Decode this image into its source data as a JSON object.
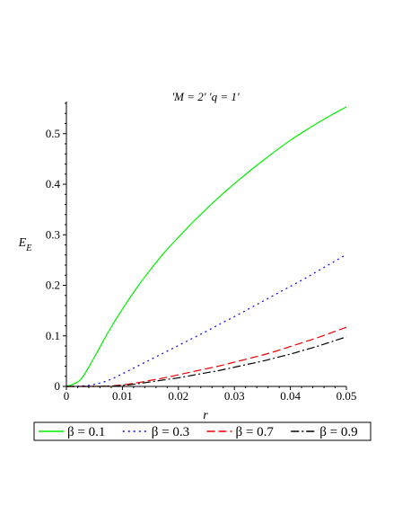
{
  "chart_data": {
    "type": "line",
    "title": "'M = 2' 'q = 1'",
    "xlabel": "r",
    "ylabel": "E",
    "ylabel_subscript": "E",
    "xlim": [
      0,
      0.05
    ],
    "ylim": [
      0,
      0.56
    ],
    "xticks": [
      0,
      0.01,
      0.02,
      0.03,
      0.04,
      0.05
    ],
    "xtick_labels": [
      "0",
      "0.01",
      "0.02",
      "0.03",
      "0.04",
      "0.05"
    ],
    "yticks": [
      0,
      0.1,
      0.2,
      0.3,
      0.4,
      0.5
    ],
    "ytick_labels": [
      "0",
      "0.1",
      "0.2",
      "0.3",
      "0.4",
      "0.5"
    ],
    "grid": false,
    "legend_position": "bottom",
    "x": [
      0,
      0.0025,
      0.005,
      0.0075,
      0.01,
      0.0125,
      0.015,
      0.0175,
      0.02,
      0.0225,
      0.025,
      0.0275,
      0.03,
      0.0325,
      0.035,
      0.0375,
      0.04,
      0.0425,
      0.045,
      0.0475,
      0.05
    ],
    "series": [
      {
        "name": "β = 0.1",
        "color": "#00ee00",
        "dash": "solid",
        "values": [
          0,
          0.013,
          0.058,
          0.108,
          0.153,
          0.194,
          0.231,
          0.265,
          0.295,
          0.324,
          0.351,
          0.377,
          0.401,
          0.424,
          0.446,
          0.467,
          0.487,
          0.505,
          0.522,
          0.538,
          0.553
        ]
      },
      {
        "name": "β = 0.3",
        "color": "#0000ee",
        "dash": "dot",
        "values": [
          0,
          0.0005,
          0.004,
          0.012,
          0.025,
          0.039,
          0.053,
          0.067,
          0.081,
          0.095,
          0.109,
          0.124,
          0.138,
          0.153,
          0.168,
          0.183,
          0.198,
          0.213,
          0.229,
          0.245,
          0.261
        ]
      },
      {
        "name": "β = 0.7",
        "color": "#ee0000",
        "dash": "dash",
        "values": [
          0,
          0,
          0,
          0.0008,
          0.003,
          0.007,
          0.012,
          0.017,
          0.023,
          0.029,
          0.035,
          0.041,
          0.048,
          0.055,
          0.062,
          0.07,
          0.079,
          0.088,
          0.097,
          0.107,
          0.117
        ]
      },
      {
        "name": "β = 0.9",
        "color": "#000000",
        "dash": "dashdot",
        "values": [
          0,
          0,
          0,
          0.0005,
          0.002,
          0.005,
          0.009,
          0.013,
          0.017,
          0.022,
          0.027,
          0.032,
          0.038,
          0.044,
          0.05,
          0.057,
          0.064,
          0.072,
          0.08,
          0.089,
          0.098
        ]
      }
    ]
  }
}
